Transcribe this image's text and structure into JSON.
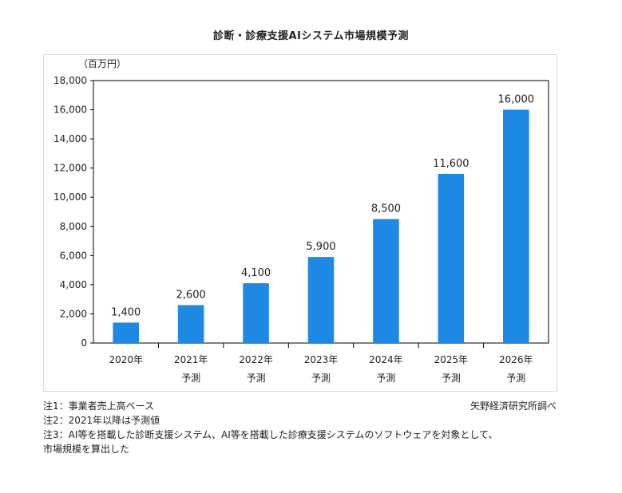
{
  "page": {
    "title": "診断・診療支援AIシステム市場規模予測",
    "unit_label": "（百万円）",
    "notes": [
      "注1：事業者売上高ベース",
      "注2：2021年以降は予測値",
      "注3：AI等を搭載した診断支援システム、AI等を搭載した診療支援システムのソフトウェアを対象として、",
      "市場規模を算出した"
    ],
    "source": "矢野経済研究所調べ"
  },
  "chart_data": {
    "type": "bar",
    "title": "診断・診療支援AIシステム市場規模予測",
    "ylabel": "（百万円）",
    "categories": [
      [
        "2020年"
      ],
      [
        "2021年",
        "予測"
      ],
      [
        "2022年",
        "予測"
      ],
      [
        "2023年",
        "予測"
      ],
      [
        "2024年",
        "予測"
      ],
      [
        "2025年",
        "予測"
      ],
      [
        "2026年",
        "予測"
      ]
    ],
    "values": [
      1400,
      2600,
      4100,
      5900,
      8500,
      11600,
      16000
    ],
    "data_labels": [
      "1,400",
      "2,600",
      "4,100",
      "5,900",
      "8,500",
      "11,600",
      "16,000"
    ],
    "ylim": [
      0,
      18000
    ],
    "yticks": [
      0,
      2000,
      4000,
      6000,
      8000,
      10000,
      12000,
      14000,
      16000,
      18000
    ],
    "ytick_labels": [
      "0",
      "2,000",
      "4,000",
      "6,000",
      "8,000",
      "10,000",
      "12,000",
      "14,000",
      "16,000",
      "18,000"
    ],
    "bar_color": "#1e88e5",
    "grid": false,
    "legend": "none"
  }
}
